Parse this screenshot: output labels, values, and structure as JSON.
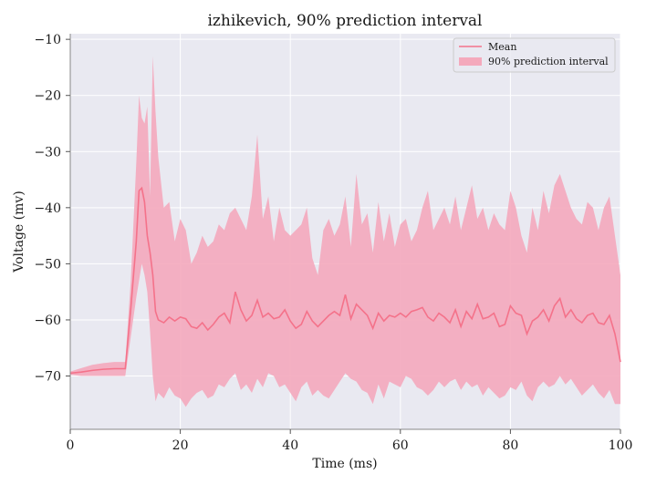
{
  "chart_data": {
    "type": "line",
    "title": "izhikevich, 90% prediction interval",
    "xlabel": "Time (ms)",
    "ylabel": "Voltage (mv)",
    "xlim": [
      0,
      100
    ],
    "ylim": [
      -79.5,
      -9
    ],
    "xticks": [
      "0",
      "20",
      "40",
      "60",
      "80",
      "100"
    ],
    "yticks": [
      "−10",
      "−20",
      "−30",
      "−40",
      "−50",
      "−60",
      "−70"
    ],
    "grid": true,
    "legend": {
      "placement": "top-right",
      "entries": [
        "Mean",
        "90% prediction interval"
      ]
    },
    "colors": {
      "mean": "#f4728a",
      "band": "#f4a9bc",
      "background": "#e9e9f1"
    },
    "series": [
      {
        "name": "Mean",
        "x": [
          0,
          2,
          4,
          6,
          8,
          10,
          11,
          12,
          12.5,
          13,
          13.5,
          14,
          14.5,
          15,
          15.5,
          16,
          17,
          18,
          19,
          20,
          21,
          22,
          23,
          24,
          25,
          26,
          27,
          28,
          29,
          30,
          31,
          32,
          33,
          34,
          35,
          36,
          37,
          38,
          39,
          40,
          41,
          42,
          43,
          44,
          45,
          46,
          47,
          48,
          49,
          50,
          51,
          52,
          53,
          54,
          55,
          56,
          57,
          58,
          59,
          60,
          61,
          62,
          63,
          64,
          65,
          66,
          67,
          68,
          69,
          70,
          71,
          72,
          73,
          74,
          75,
          76,
          77,
          78,
          79,
          80,
          81,
          82,
          83,
          84,
          85,
          86,
          87,
          88,
          89,
          90,
          91,
          92,
          93,
          94,
          95,
          96,
          97,
          98,
          99,
          100
        ],
        "y": [
          -69.5,
          -69.3,
          -69.0,
          -68.8,
          -68.7,
          -68.7,
          -58,
          -46,
          -37,
          -36.5,
          -39,
          -45,
          -48,
          -52,
          -58.5,
          -60,
          -60.5,
          -59.5,
          -60.2,
          -59.5,
          -59.8,
          -61.2,
          -61.5,
          -60.5,
          -61.8,
          -60.8,
          -59.5,
          -58.8,
          -60.5,
          -55,
          -58.2,
          -60.2,
          -59.2,
          -56.5,
          -59.5,
          -58.8,
          -59.8,
          -59.5,
          -58.2,
          -60.2,
          -61.5,
          -60.8,
          -58.5,
          -60.2,
          -61.2,
          -60.2,
          -59.2,
          -58.5,
          -59.2,
          -55.5,
          -59.8,
          -57.2,
          -58.2,
          -59.2,
          -61.5,
          -58.8,
          -60.2,
          -59.2,
          -59.5,
          -58.8,
          -59.5,
          -58.5,
          -58.2,
          -57.8,
          -59.5,
          -60.2,
          -58.8,
          -59.5,
          -60.5,
          -58.2,
          -61.2,
          -58.5,
          -59.8,
          -57.2,
          -59.8,
          -59.5,
          -58.8,
          -61.2,
          -60.8,
          -57.5,
          -58.8,
          -59.2,
          -62.5,
          -60.2,
          -59.5,
          -58.2,
          -60.2,
          -57.5,
          -56.2,
          -59.5,
          -58.2,
          -59.8,
          -60.5,
          -59.2,
          -58.8,
          -60.5,
          -60.8,
          -59.2,
          -62.5,
          -67.5
        ]
      },
      {
        "name": "90% prediction interval",
        "x": [
          0,
          2,
          4,
          6,
          8,
          10,
          11,
          12,
          12.5,
          13,
          13.5,
          14,
          14.5,
          15,
          15.5,
          16,
          17,
          18,
          19,
          20,
          21,
          22,
          23,
          24,
          25,
          26,
          27,
          28,
          29,
          30,
          31,
          32,
          33,
          34,
          35,
          36,
          37,
          38,
          39,
          40,
          41,
          42,
          43,
          44,
          45,
          46,
          47,
          48,
          49,
          50,
          51,
          52,
          53,
          54,
          55,
          56,
          57,
          58,
          59,
          60,
          61,
          62,
          63,
          64,
          65,
          66,
          67,
          68,
          69,
          70,
          71,
          72,
          73,
          74,
          75,
          76,
          77,
          78,
          79,
          80,
          81,
          82,
          83,
          84,
          85,
          86,
          87,
          88,
          89,
          90,
          91,
          92,
          93,
          94,
          95,
          96,
          97,
          98,
          99,
          100
        ],
        "lower": [
          -69.8,
          -70.0,
          -70.0,
          -70.0,
          -70.0,
          -70.0,
          -63,
          -56,
          -53,
          -50,
          -52,
          -55,
          -62,
          -70,
          -74.5,
          -73,
          -74,
          -72,
          -73.5,
          -74,
          -75.5,
          -74,
          -73,
          -72.5,
          -74,
          -73.5,
          -71.5,
          -72,
          -70.5,
          -69.5,
          -72.5,
          -71.5,
          -73,
          -70.5,
          -72,
          -69.5,
          -70,
          -72,
          -71.5,
          -73,
          -74.5,
          -72,
          -71,
          -73.5,
          -72.5,
          -73.5,
          -74,
          -72.5,
          -71,
          -69.5,
          -70.5,
          -71,
          -72.5,
          -73,
          -75,
          -71.5,
          -74,
          -71,
          -71.5,
          -72,
          -70,
          -70.5,
          -72,
          -72.5,
          -73.5,
          -72.5,
          -71,
          -72,
          -71,
          -70.5,
          -72.5,
          -71,
          -72,
          -71.5,
          -73.5,
          -72,
          -73,
          -74,
          -73.5,
          -72,
          -72.5,
          -71,
          -73.5,
          -74.5,
          -72,
          -71,
          -72,
          -71.5,
          -70,
          -71.5,
          -70.5,
          -72,
          -73.5,
          -72.5,
          -71.5,
          -73,
          -74,
          -72.5,
          -75,
          -75
        ],
        "upper": [
          -69.2,
          -68.6,
          -68.0,
          -67.7,
          -67.5,
          -67.5,
          -53,
          -32,
          -20,
          -24,
          -25,
          -22,
          -38,
          -13,
          -23,
          -31,
          -40,
          -39,
          -46,
          -42,
          -44,
          -50,
          -48,
          -45,
          -47,
          -46,
          -43,
          -44,
          -41,
          -40,
          -42,
          -44,
          -38,
          -27,
          -42,
          -38,
          -46,
          -40,
          -44,
          -45,
          -44,
          -43,
          -40,
          -49,
          -52,
          -44,
          -42,
          -45,
          -43,
          -38,
          -47,
          -34,
          -43,
          -41,
          -48,
          -39,
          -46,
          -41,
          -47,
          -43,
          -42,
          -46,
          -44,
          -40,
          -37,
          -44,
          -42,
          -40,
          -43,
          -38,
          -44,
          -40,
          -36,
          -42,
          -40,
          -44,
          -41,
          -43,
          -44,
          -37,
          -40,
          -45,
          -48,
          -40,
          -44,
          -37,
          -41,
          -36,
          -34,
          -37,
          -40,
          -42,
          -43,
          -39,
          -40,
          -44,
          -40,
          -38,
          -45,
          -52
        ]
      }
    ]
  }
}
